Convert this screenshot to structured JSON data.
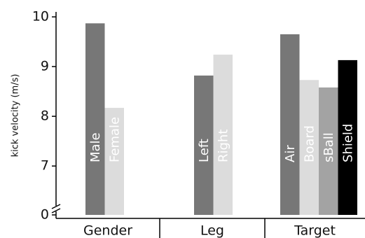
{
  "chart_data": {
    "type": "bar",
    "ylabel": "kick velocity (m/s)",
    "ylim": [
      6.2,
      10.1
    ],
    "yticks": [
      0,
      7,
      8,
      9,
      10
    ],
    "axis_break": true,
    "groups": [
      {
        "name": "Gender",
        "bars": [
          {
            "label": "Male",
            "value": 9.87,
            "color": "#777777"
          },
          {
            "label": "Female",
            "value": 8.17,
            "color": "#dcdcdc"
          }
        ]
      },
      {
        "name": "Leg",
        "bars": [
          {
            "label": "Left",
            "value": 8.82,
            "color": "#777777"
          },
          {
            "label": "Right",
            "value": 9.24,
            "color": "#dcdcdc"
          }
        ]
      },
      {
        "name": "Target",
        "bars": [
          {
            "label": "Air",
            "value": 9.65,
            "color": "#777777"
          },
          {
            "label": "Board",
            "value": 8.73,
            "color": "#dcdcdc"
          },
          {
            "label": "sBall",
            "value": 8.58,
            "color": "#a3a3a3"
          },
          {
            "label": "Shield",
            "value": 9.13,
            "color": "#000000"
          }
        ]
      }
    ]
  }
}
